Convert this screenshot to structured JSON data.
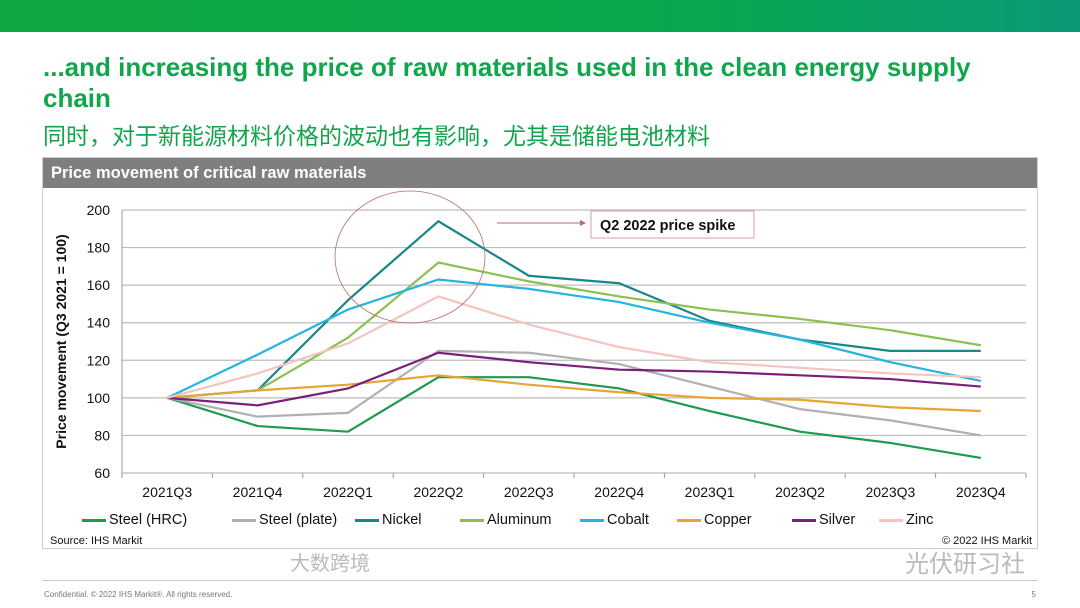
{
  "slide": {
    "title": "...and increasing the price of raw materials used in the clean energy supply chain",
    "subtitle": "同时，对于新能源材料价格的波动也有影响，尤其是储能电池材料",
    "panel_title": "Price movement of critical raw materials",
    "source": "Source: IHS Markit",
    "copyright": "© 2022 IHS Markit",
    "footer": "Confidential. © 2022 IHS Markit®. All rights reserved.",
    "page_number": "5",
    "watermark_right": "光伏研习社",
    "watermark_left": "大数跨境"
  },
  "chart_data": {
    "type": "line",
    "title": "Price movement of critical raw materials",
    "ylabel": "Price movement  (Q3 2021 = 100)",
    "xlabel": "",
    "ylim": [
      60,
      200
    ],
    "yticks": [
      60,
      80,
      100,
      120,
      140,
      160,
      180,
      200
    ],
    "grid": true,
    "legend": "bottom",
    "categories": [
      "2021Q3",
      "2021Q4",
      "2022Q1",
      "2022Q2",
      "2022Q3",
      "2022Q4",
      "2023Q1",
      "2023Q2",
      "2023Q3",
      "2023Q4"
    ],
    "annotation": "Q2 2022 price spike",
    "series": [
      {
        "name": "Steel (HRC)",
        "color": "#1f9a4e",
        "values": [
          100,
          85,
          82,
          111,
          111,
          105,
          93,
          82,
          76,
          68
        ]
      },
      {
        "name": "Steel (plate)",
        "color": "#b0b0b0",
        "values": [
          100,
          90,
          92,
          125,
          124,
          118,
          106,
          94,
          88,
          80
        ]
      },
      {
        "name": "Nickel",
        "color": "#19878a",
        "values": [
          100,
          104,
          152,
          194,
          165,
          161,
          141,
          131,
          125,
          125
        ]
      },
      {
        "name": "Aluminum",
        "color": "#8cc152",
        "values": [
          100,
          104,
          132,
          172,
          162,
          154,
          147,
          142,
          136,
          128
        ]
      },
      {
        "name": "Cobalt",
        "color": "#26b5dc",
        "values": [
          100,
          123,
          147,
          163,
          158,
          151,
          140,
          131,
          119,
          109
        ]
      },
      {
        "name": "Copper",
        "color": "#e8a435",
        "values": [
          100,
          104,
          107,
          112,
          107,
          103,
          100,
          99,
          95,
          93
        ]
      },
      {
        "name": "Silver",
        "color": "#7b1f7a",
        "values": [
          100,
          96,
          105,
          124,
          119,
          115,
          114,
          112,
          110,
          106
        ]
      },
      {
        "name": "Zinc",
        "color": "#f3c4c0",
        "values": [
          100,
          113,
          129,
          154,
          139,
          127,
          119,
          116,
          113,
          111
        ]
      }
    ]
  }
}
